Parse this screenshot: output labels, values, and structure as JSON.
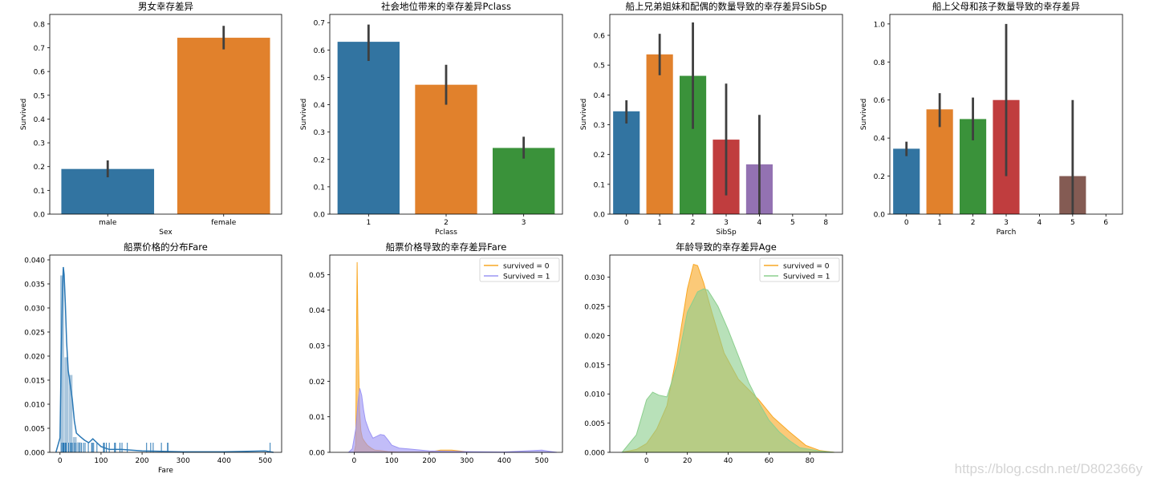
{
  "colors": {
    "c0": "#3274a1",
    "c1": "#e1812c",
    "c2": "#3a923a",
    "c3": "#c03d3e",
    "c4": "#9372b2",
    "c5": "#845b53",
    "err": "#3f3f3f",
    "fare_hist": "#a9c6dd",
    "fare_line": "#2a78b5",
    "orange": "#f9a825",
    "blue": "#9c95f4",
    "green": "#8ccf8e",
    "olive": "#a7a831"
  },
  "watermark": "https://blog.csdn.net/D802366y",
  "chart_data": [
    {
      "type": "bar",
      "title": "男女幸存差异",
      "xlabel": "Sex",
      "ylabel": "Survived",
      "categories": [
        "male",
        "female"
      ],
      "values": [
        0.19,
        0.742
      ],
      "err_low": [
        0.155,
        0.693
      ],
      "err_high": [
        0.226,
        0.792
      ],
      "ylim": [
        0,
        0.84
      ],
      "yticks": [
        "0.0",
        "0.1",
        "0.2",
        "0.3",
        "0.4",
        "0.5",
        "0.6",
        "0.7",
        "0.8"
      ]
    },
    {
      "type": "bar",
      "title": "社会地位带来的幸存差异Pclass",
      "xlabel": "Pclass",
      "ylabel": "Survived",
      "categories": [
        "1",
        "2",
        "3"
      ],
      "values": [
        0.63,
        0.473,
        0.242
      ],
      "err_low": [
        0.56,
        0.4,
        0.203
      ],
      "err_high": [
        0.693,
        0.546,
        0.283
      ],
      "ylim": [
        0,
        0.73
      ],
      "yticks": [
        "0.0",
        "0.1",
        "0.2",
        "0.3",
        "0.4",
        "0.5",
        "0.6",
        "0.7"
      ]
    },
    {
      "type": "bar",
      "title": "船上兄弟姐妹和配偶的数量导致的幸存差异SibSp",
      "xlabel": "SibSp",
      "ylabel": "Survived",
      "categories": [
        "0",
        "1",
        "2",
        "3",
        "4",
        "5",
        "8"
      ],
      "values": [
        0.345,
        0.536,
        0.464,
        0.25,
        0.167,
        0,
        0
      ],
      "err_low": [
        0.304,
        0.466,
        0.286,
        0.063,
        0.0,
        null,
        null
      ],
      "err_high": [
        0.382,
        0.605,
        0.643,
        0.438,
        0.333,
        null,
        null
      ],
      "ylim": [
        0,
        0.67
      ],
      "yticks": [
        "0.0",
        "0.1",
        "0.2",
        "0.3",
        "0.4",
        "0.5",
        "0.6"
      ]
    },
    {
      "type": "bar",
      "title": "船上父母和孩子数量导致的幸存差异",
      "xlabel": "Parch",
      "ylabel": "Survived",
      "categories": [
        "0",
        "1",
        "2",
        "3",
        "4",
        "5",
        "6"
      ],
      "values": [
        0.344,
        0.551,
        0.5,
        0.6,
        0,
        0.2,
        0
      ],
      "err_low": [
        0.305,
        0.458,
        0.388,
        0.2,
        null,
        0.0,
        null
      ],
      "err_high": [
        0.381,
        0.636,
        0.613,
        1.0,
        null,
        0.6,
        null
      ],
      "ylim": [
        0,
        1.05
      ],
      "yticks": [
        "0.0",
        "0.2",
        "0.4",
        "0.6",
        "0.8",
        "1.0"
      ]
    },
    {
      "type": "area",
      "title": "船票价格的分布Fare",
      "xlabel": "Fare",
      "ylabel": "",
      "xlim": [
        -25,
        540
      ],
      "ylim": [
        0,
        0.041
      ],
      "xticks": [
        0,
        100,
        200,
        300,
        400,
        500
      ],
      "yticks": [
        "0.000",
        "0.005",
        "0.010",
        "0.015",
        "0.020",
        "0.025",
        "0.030",
        "0.035",
        "0.040"
      ],
      "hist_bins": [
        0,
        10.25,
        20.5,
        30.75,
        41,
        51.25
      ],
      "hist_heights": [
        0.0368,
        0.0198,
        0.0161,
        0.0032,
        0.0021
      ],
      "kde_x": [
        -10,
        0,
        3,
        6,
        8,
        10,
        13,
        16,
        20,
        25,
        30,
        35,
        40,
        50,
        60,
        70,
        80,
        90,
        100,
        120,
        150,
        200,
        250,
        300,
        400,
        500,
        520
      ],
      "kde_y": [
        0,
        0.003,
        0.02,
        0.034,
        0.0385,
        0.037,
        0.031,
        0.023,
        0.017,
        0.014,
        0.011,
        0.0065,
        0.004,
        0.0032,
        0.0025,
        0.002,
        0.0028,
        0.002,
        0.0012,
        0.0006,
        0.0006,
        0.0003,
        0.0002,
        0.0001,
        0.0001,
        0.0003,
        0
      ],
      "rug": [
        4,
        7,
        8,
        8,
        9,
        10,
        13,
        15,
        21,
        26,
        27,
        30,
        35,
        39,
        47,
        52,
        57,
        61,
        69,
        77,
        79,
        82,
        90,
        106,
        108,
        113,
        120,
        133,
        135,
        146,
        151,
        164,
        211,
        221,
        227,
        247,
        262,
        263,
        512
      ]
    },
    {
      "type": "area",
      "title": "船票价格导致的幸存差异Fare",
      "xlabel": "",
      "ylabel": "",
      "xlim": [
        -65,
        555
      ],
      "ylim": [
        0,
        0.0555
      ],
      "xticks": [
        0,
        100,
        200,
        300,
        400,
        500
      ],
      "yticks": [
        "0.00",
        "0.01",
        "0.02",
        "0.03",
        "0.04",
        "0.05"
      ],
      "series": [
        {
          "name": "survived = 0",
          "x": [
            0,
            4,
            6,
            8,
            10,
            14,
            18,
            22,
            28,
            35,
            45,
            55,
            70,
            90,
            120,
            150,
            200,
            230,
            260,
            290,
            320
          ],
          "y": [
            0,
            0.002,
            0.03,
            0.0535,
            0.036,
            0.012,
            0.006,
            0.004,
            0.003,
            0.002,
            0.0012,
            0.0006,
            0.0005,
            0.0002,
            0.0001,
            0.0001,
            0.0001,
            0.0006,
            0.0006,
            0.0003,
            0
          ]
        },
        {
          "name": "Survived = 1",
          "x": [
            -15,
            -5,
            5,
            10,
            15,
            20,
            25,
            30,
            40,
            50,
            60,
            70,
            80,
            90,
            100,
            120,
            150,
            200,
            250,
            300,
            400,
            500,
            520,
            540
          ],
          "y": [
            0,
            0.001,
            0.007,
            0.014,
            0.018,
            0.016,
            0.012,
            0.009,
            0.006,
            0.004,
            0.0045,
            0.005,
            0.0048,
            0.0035,
            0.002,
            0.0012,
            0.0009,
            0.0004,
            0.0003,
            0.0002,
            0.0001,
            0.0006,
            0.0003,
            0
          ]
        }
      ]
    },
    {
      "type": "area",
      "title": "年龄导致的幸存差异Age",
      "xlabel": "",
      "ylabel": "",
      "xlim": [
        -18,
        96
      ],
      "ylim": [
        0,
        0.0338
      ],
      "xticks": [
        0,
        20,
        40,
        60,
        80
      ],
      "yticks": [
        "0.000",
        "0.005",
        "0.010",
        "0.015",
        "0.020",
        "0.025",
        "0.030"
      ],
      "series": [
        {
          "name": "survived = 0",
          "x": [
            -12,
            -5,
            0,
            5,
            10,
            15,
            20,
            23,
            25,
            28,
            32,
            38,
            45,
            55,
            62,
            70,
            78,
            85,
            92
          ],
          "y": [
            0,
            0.0005,
            0.0015,
            0.004,
            0.008,
            0.017,
            0.028,
            0.0322,
            0.032,
            0.029,
            0.024,
            0.017,
            0.0125,
            0.009,
            0.006,
            0.0035,
            0.0012,
            0.0003,
            0
          ]
        },
        {
          "name": "Survived = 1",
          "x": [
            -12,
            -5,
            0,
            3,
            6,
            10,
            15,
            20,
            25,
            28,
            30,
            35,
            40,
            45,
            50,
            55,
            60,
            65,
            70,
            75,
            85,
            92
          ],
          "y": [
            0,
            0.003,
            0.009,
            0.0103,
            0.0098,
            0.0095,
            0.015,
            0.024,
            0.0275,
            0.028,
            0.0278,
            0.025,
            0.021,
            0.0165,
            0.012,
            0.0085,
            0.0055,
            0.0035,
            0.002,
            0.0008,
            0.0002,
            0
          ]
        }
      ]
    }
  ]
}
